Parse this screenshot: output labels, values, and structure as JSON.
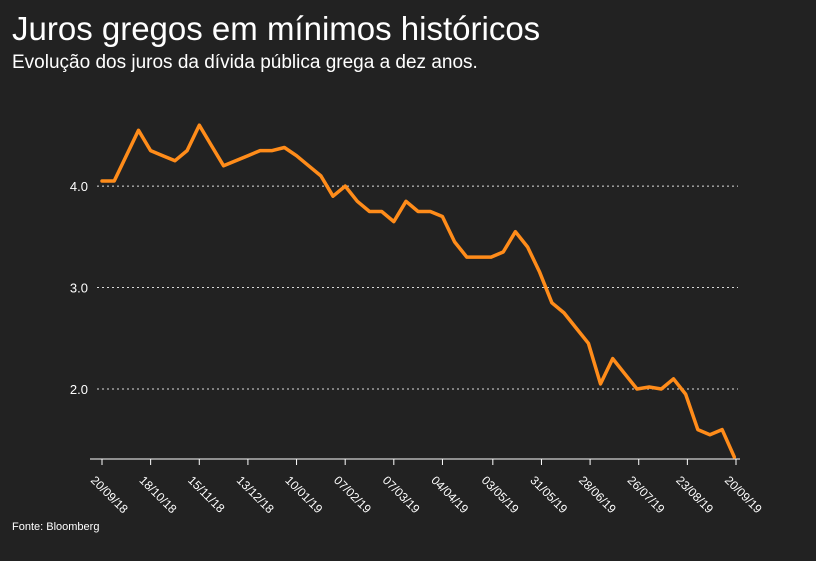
{
  "chart_data": {
    "type": "line",
    "title": "Juros gregos em mínimos históricos",
    "subtitle": "Evolução dos juros da dívida pública grega a dez anos.",
    "source": "Fonte: Bloomberg",
    "color": "#ff8c1a",
    "grid": true,
    "x": [
      "2018-09-20",
      "2018-09-27",
      "2018-10-04",
      "2018-10-11",
      "2018-10-18",
      "2018-10-25",
      "2018-11-01",
      "2018-11-08",
      "2018-11-15",
      "2018-11-22",
      "2018-11-29",
      "2018-12-06",
      "2018-12-13",
      "2018-12-20",
      "2018-12-27",
      "2019-01-03",
      "2019-01-10",
      "2019-01-17",
      "2019-01-24",
      "2019-01-31",
      "2019-02-07",
      "2019-02-14",
      "2019-02-21",
      "2019-02-28",
      "2019-03-07",
      "2019-03-14",
      "2019-03-21",
      "2019-03-28",
      "2019-04-04",
      "2019-04-11",
      "2019-04-18",
      "2019-04-25",
      "2019-05-02",
      "2019-05-09",
      "2019-05-16",
      "2019-05-23",
      "2019-05-30",
      "2019-06-06",
      "2019-06-13",
      "2019-06-20",
      "2019-06-27",
      "2019-07-04",
      "2019-07-11",
      "2019-07-18",
      "2019-07-25",
      "2019-08-01",
      "2019-08-08",
      "2019-08-15",
      "2019-08-22",
      "2019-08-29",
      "2019-09-05",
      "2019-09-12",
      "2019-09-19"
    ],
    "values": [
      4.05,
      4.05,
      4.3,
      4.55,
      4.35,
      4.3,
      4.25,
      4.35,
      4.6,
      4.4,
      4.2,
      4.25,
      4.3,
      4.35,
      4.35,
      4.38,
      4.3,
      4.2,
      4.1,
      3.9,
      4.0,
      3.85,
      3.75,
      3.75,
      3.65,
      3.85,
      3.75,
      3.75,
      3.7,
      3.45,
      3.3,
      3.3,
      3.3,
      3.35,
      3.55,
      3.4,
      3.15,
      2.85,
      2.75,
      2.6,
      2.45,
      2.05,
      2.3,
      2.15,
      2.0,
      2.02,
      2.0,
      2.1,
      1.95,
      1.6,
      1.55,
      1.6,
      1.33
    ],
    "xlim": [
      "2018-09-20",
      "2019-09-20"
    ],
    "xticks": [
      {
        "value": "2018-09-20",
        "label": "20/09/18"
      },
      {
        "value": "2018-10-18",
        "label": "18/10/18"
      },
      {
        "value": "2018-11-15",
        "label": "15/11/18"
      },
      {
        "value": "2018-12-13",
        "label": "13/12/18"
      },
      {
        "value": "2019-01-10",
        "label": "10/01/19"
      },
      {
        "value": "2019-02-07",
        "label": "07/02/19"
      },
      {
        "value": "2019-03-07",
        "label": "07/03/19"
      },
      {
        "value": "2019-04-04",
        "label": "04/04/19"
      },
      {
        "value": "2019-05-03",
        "label": "03/05/19"
      },
      {
        "value": "2019-05-31",
        "label": "31/05/19"
      },
      {
        "value": "2019-06-28",
        "label": "28/06/19"
      },
      {
        "value": "2019-07-26",
        "label": "26/07/19"
      },
      {
        "value": "2019-08-23",
        "label": "23/08/19"
      },
      {
        "value": "2019-09-20",
        "label": "20/09/19"
      }
    ],
    "ylim": [
      1.31,
      4.75
    ],
    "yticks": [
      {
        "value": 2,
        "label": "2.0"
      },
      {
        "value": 3,
        "label": "3.0"
      },
      {
        "value": 4,
        "label": "4.0"
      }
    ]
  }
}
